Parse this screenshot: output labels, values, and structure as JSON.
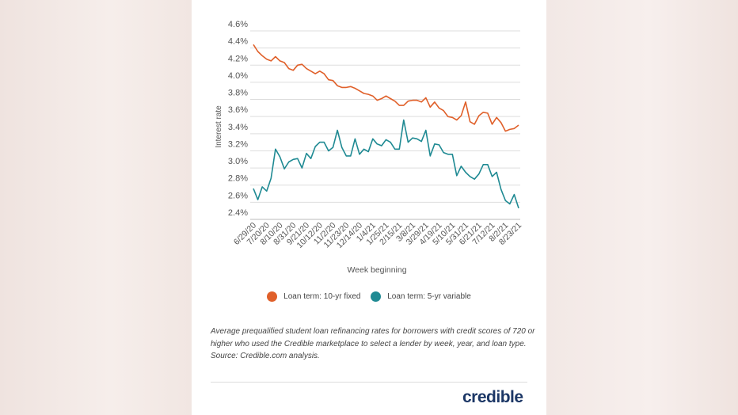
{
  "chart_data": {
    "type": "line",
    "xlabel": "Week beginning",
    "ylabel": "Interest rate",
    "ylim": [
      2.4,
      4.6
    ],
    "yticks": [
      "2.4%",
      "2.6%",
      "2.8%",
      "3.0%",
      "3.2%",
      "3.4%",
      "3.6%",
      "3.8%",
      "4.0%",
      "4.2%",
      "4.4%",
      "4.6%"
    ],
    "xtick_labels": [
      "6/29/20",
      "7/20/20",
      "8/10/20",
      "8/31/20",
      "9/21/20",
      "10/12/20",
      "11/2/20",
      "11/23/20",
      "12/14/20",
      "1/4/21",
      "1/25/21",
      "2/15/21",
      "3/8/21",
      "3/29/21",
      "4/19/21",
      "5/10/21",
      "5/31/21",
      "6/21/21",
      "7/12/21",
      "8/2/21",
      "8/23/21"
    ],
    "x_frequency": "weekly",
    "grid": "horizontal",
    "legend_position": "bottom",
    "series": [
      {
        "name": "Loan term: 10-yr fixed",
        "color": "#e0602a",
        "values": [
          4.44,
          4.36,
          4.31,
          4.27,
          4.25,
          4.3,
          4.25,
          4.23,
          4.16,
          4.14,
          4.2,
          4.21,
          4.16,
          4.13,
          4.1,
          4.13,
          4.1,
          4.03,
          4.02,
          3.96,
          3.94,
          3.94,
          3.95,
          3.93,
          3.9,
          3.87,
          3.86,
          3.84,
          3.79,
          3.81,
          3.84,
          3.81,
          3.78,
          3.73,
          3.73,
          3.78,
          3.79,
          3.79,
          3.77,
          3.82,
          3.71,
          3.77,
          3.7,
          3.67,
          3.6,
          3.59,
          3.56,
          3.61,
          3.77,
          3.54,
          3.51,
          3.61,
          3.65,
          3.64,
          3.51,
          3.59,
          3.53,
          3.43,
          3.45,
          3.46,
          3.5
        ]
      },
      {
        "name": "Loan term: 5-yr variable",
        "color": "#1f8a93",
        "values": [
          2.76,
          2.63,
          2.78,
          2.73,
          2.88,
          3.22,
          3.13,
          2.99,
          3.07,
          3.1,
          3.11,
          3.0,
          3.17,
          3.11,
          3.25,
          3.3,
          3.3,
          3.2,
          3.24,
          3.44,
          3.24,
          3.14,
          3.14,
          3.34,
          3.16,
          3.22,
          3.19,
          3.34,
          3.28,
          3.26,
          3.33,
          3.3,
          3.22,
          3.22,
          3.56,
          3.3,
          3.35,
          3.34,
          3.31,
          3.44,
          3.14,
          3.28,
          3.27,
          3.18,
          3.16,
          3.16,
          2.91,
          3.02,
          2.95,
          2.9,
          2.87,
          2.93,
          3.04,
          3.04,
          2.9,
          2.95,
          2.75,
          2.62,
          2.58,
          2.69,
          2.53
        ]
      }
    ]
  },
  "caption": "Average prequalified student loan refinancing rates for borrowers with credit scores of 720 or higher who used the Credible marketplace to select a lender by week, year, and loan type. Source: Credible.com analysis.",
  "logo": "credible"
}
